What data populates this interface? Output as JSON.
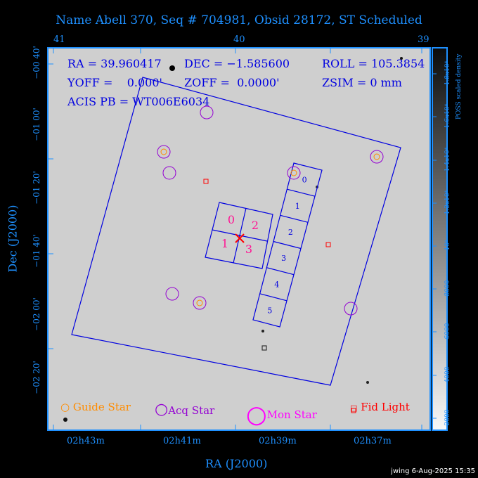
{
  "title": "Name Abell 370, Seq # 704981, Obsid 28172, ST Scheduled",
  "info": {
    "ra": "RA = 39.960417",
    "dec": "DEC = −1.585600",
    "roll": "ROLL = 105.3854",
    "yoff": "YOFF =    0.000'",
    "zoff": "ZOFF =  0.0000'",
    "zsim": "ZSIM = 0 mm",
    "acis_pb": "ACIS PB = WT006E6034"
  },
  "top_axis": [
    "41",
    "40",
    "39"
  ],
  "left_axis": [
    "−00 40'",
    "−01 00'",
    "−01 20'",
    "−01 40'",
    "−02 00'",
    "−02 20'"
  ],
  "bottom_axis": [
    "02h43m",
    "02h41m",
    "02h39m",
    "02h37m"
  ],
  "xlabel": "RA (J2000)",
  "ylabel": "Dec (J2000)",
  "colorbar": {
    "label": "POSS scaled density",
    "ticks": [
      "2000",
      "4000",
      "6000",
      "8000",
      "10⁴",
      "1.2x10⁴",
      "1.4x10⁴",
      "1.6x10⁴",
      "1.8x10⁴"
    ]
  },
  "chips_i": [
    "0",
    "2",
    "1",
    "3"
  ],
  "chips_s": [
    "0",
    "1",
    "2",
    "3",
    "4",
    "5"
  ],
  "legend": {
    "guide": "Guide Star",
    "acq": "Acq Star",
    "mon": "Mon Star",
    "fid": "Fid Light"
  },
  "colors": {
    "axis": "#1e90ff",
    "overlay": "#0000e0",
    "guide": "#ff8c00",
    "acq": "#9400d3",
    "mon": "#ff00ff",
    "fid": "#ff0000",
    "aimpoint": "#ff0000"
  },
  "footer": "jwing  6-Aug-2025 15:35"
}
